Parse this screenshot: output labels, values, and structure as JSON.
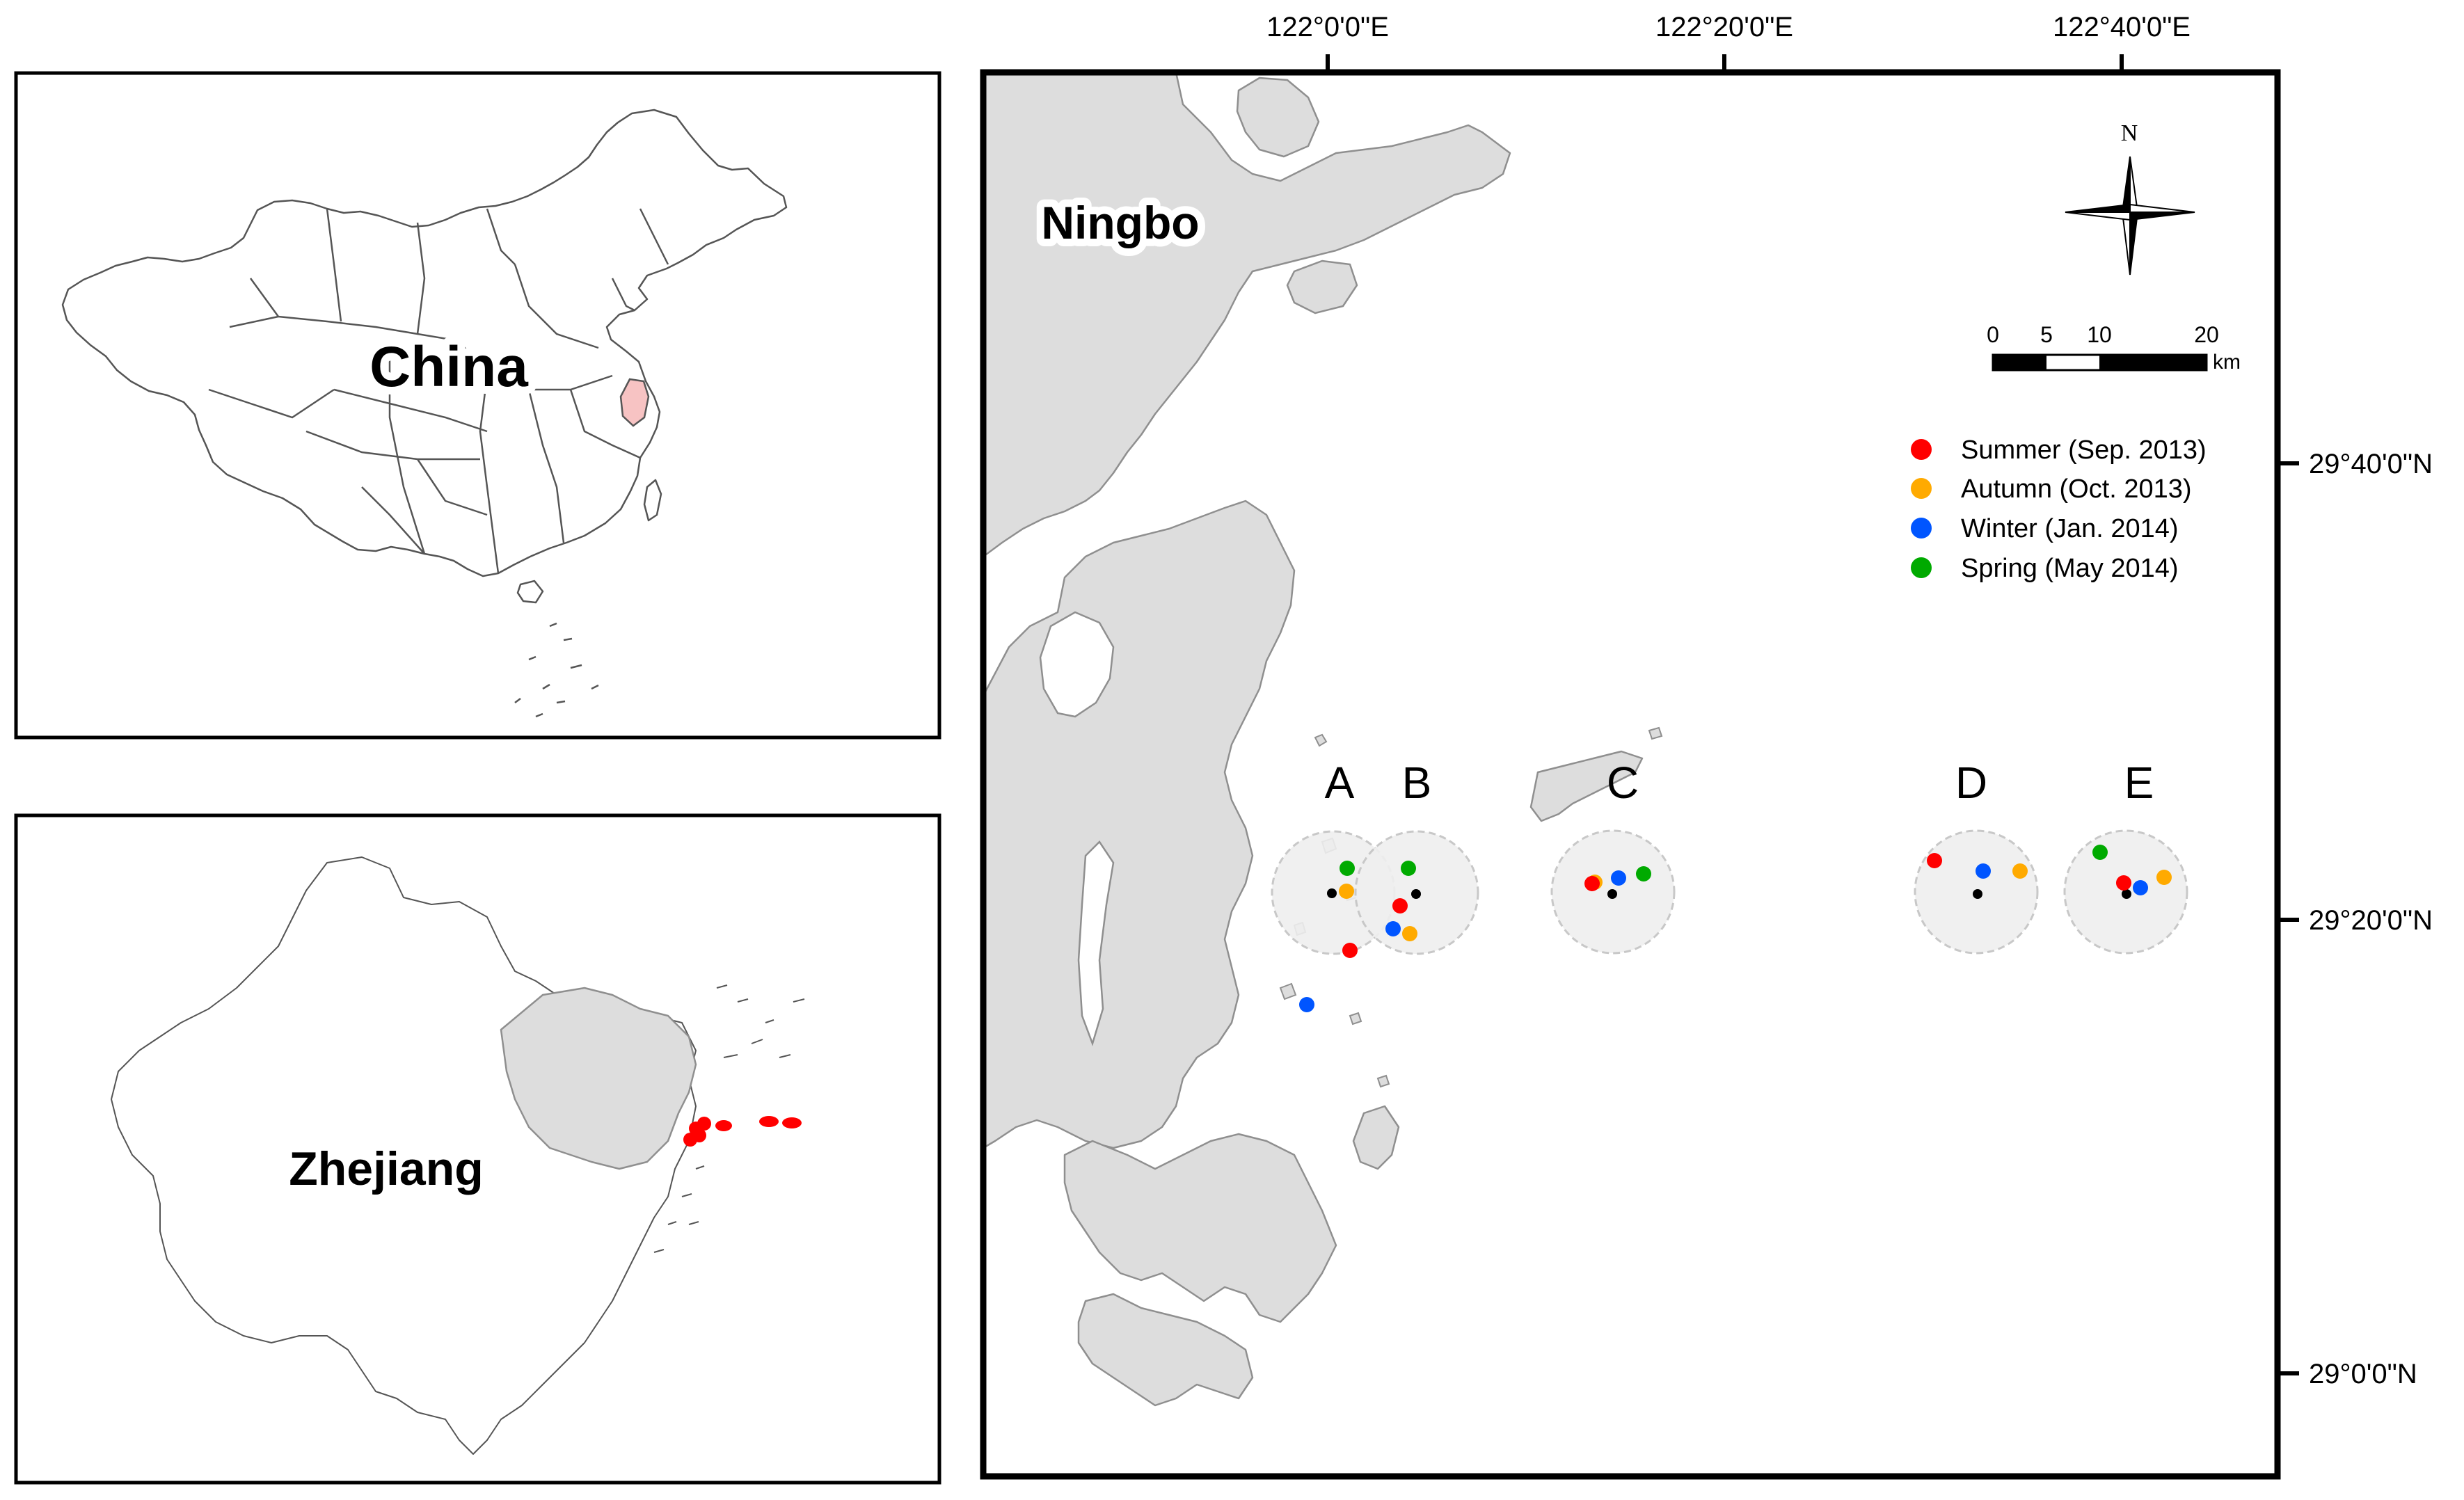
{
  "inset_china": {
    "label": "China",
    "highlight_color": "#f7c3c3"
  },
  "inset_zhejiang": {
    "label": "Zhejiang",
    "points_color": "#ff0000"
  },
  "main_map": {
    "city_label": "Ningbo",
    "lon_ticks": [
      "122°0'0\"E",
      "122°20'0\"E",
      "122°40'0\"E"
    ],
    "lat_ticks": [
      "29°40'0\"N",
      "29°20'0\"N",
      "29°0'0\"N"
    ],
    "north_arrow": {
      "label": "N",
      "icon": "compass-rose-icon"
    },
    "scale_bar": {
      "ticks": [
        "0",
        "5",
        "10",
        "20"
      ],
      "unit": "km"
    },
    "legend": [
      {
        "label": "Summer (Sep. 2013)",
        "color": "#ff0000"
      },
      {
        "label": "Autumn (Oct. 2013)",
        "color": "#ffaa00"
      },
      {
        "label": "Winter (Jan. 2014)",
        "color": "#0055ff"
      },
      {
        "label": "Spring (May 2014)",
        "color": "#00aa00"
      }
    ],
    "sites": [
      {
        "label": "A"
      },
      {
        "label": "B"
      },
      {
        "label": "C"
      },
      {
        "label": "D"
      },
      {
        "label": "E"
      }
    ]
  }
}
